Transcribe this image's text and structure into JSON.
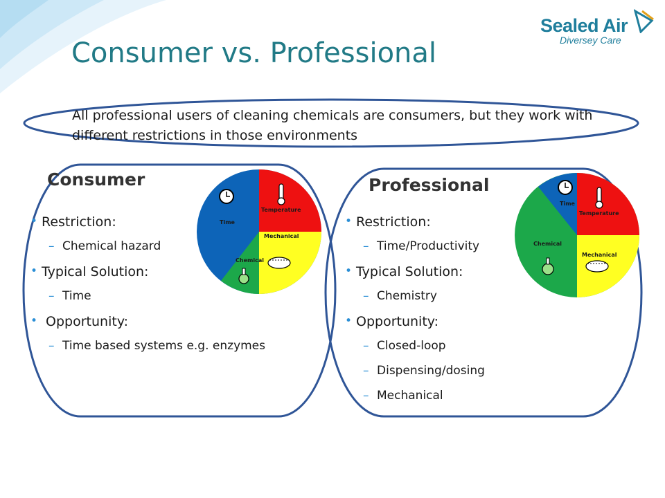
{
  "slide": {
    "title": "Consumer vs. Professional",
    "intro": "All professional users of cleaning chemicals are consumers, but they work with different restrictions in those environments"
  },
  "logo": {
    "name": "Sealed Air",
    "subtitle": "Diversey Care"
  },
  "consumer": {
    "heading": "Consumer",
    "items": [
      {
        "level": 1,
        "text": "Restriction:"
      },
      {
        "level": 2,
        "text": "Chemical hazard"
      },
      {
        "level": 1,
        "text": "Typical Solution:"
      },
      {
        "level": 2,
        "text": "Time"
      },
      {
        "level": 1,
        "text": " Opportunity:"
      },
      {
        "level": 2,
        "text": "Time based systems e.g. enzymes"
      }
    ],
    "pie": {
      "labels": {
        "time": "Time",
        "temperature": "Temperature",
        "mechanical": "Mechanical",
        "chemical": "Chemical"
      }
    }
  },
  "professional": {
    "heading": "Professional",
    "items": [
      {
        "level": 1,
        "text": "Restriction:"
      },
      {
        "level": 2,
        "text": "Time/Productivity"
      },
      {
        "level": 1,
        "text": "Typical Solution:"
      },
      {
        "level": 2,
        "text": "Chemistry"
      },
      {
        "level": 1,
        "text": "Opportunity:"
      },
      {
        "level": 2,
        "text": "Closed-loop"
      },
      {
        "level": 2,
        "text": "Dispensing/dosing"
      },
      {
        "level": 2,
        "text": "Mechanical"
      }
    ],
    "pie": {
      "labels": {
        "time": "Time",
        "temperature": "Temperature",
        "mechanical": "Mechanical",
        "chemical": "Chemical"
      }
    }
  },
  "colors": {
    "title": "#217a86",
    "outline": "#2f5597",
    "bullet": "#2b8fd6",
    "time": "#0d64b8",
    "temperature": "#ee1111",
    "mechanical": "#ffff22",
    "chemical": "#1ca84a"
  }
}
